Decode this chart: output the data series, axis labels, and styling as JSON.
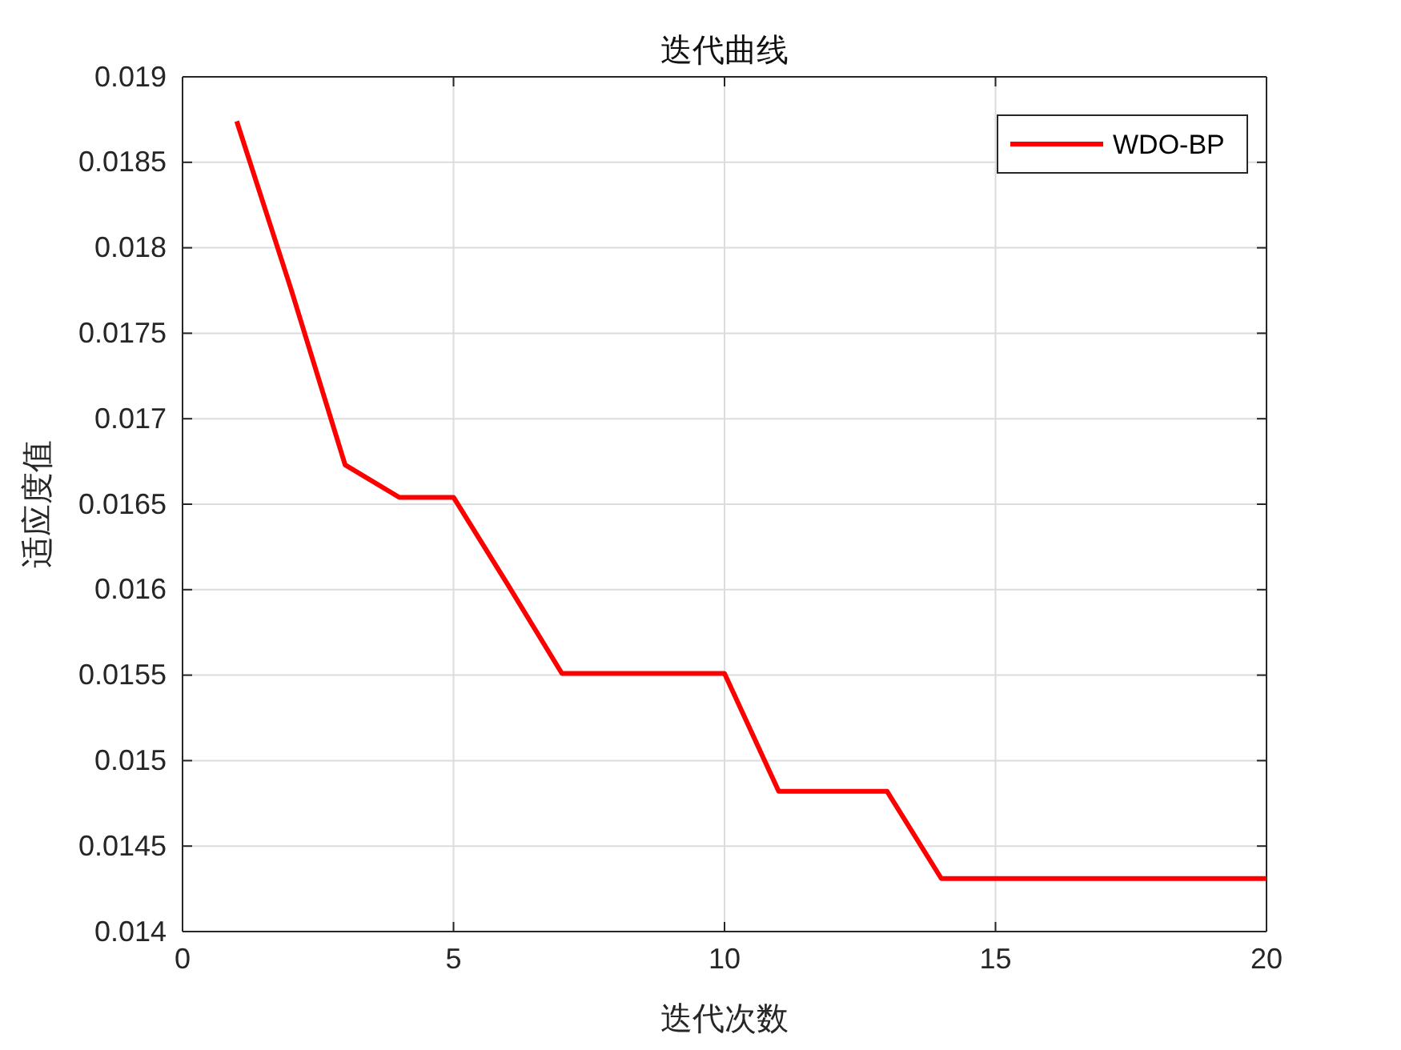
{
  "chart_data": {
    "type": "line",
    "title": "迭代曲线",
    "xlabel": "迭代次数",
    "ylabel": "适应度值",
    "x": [
      1,
      2,
      3,
      4,
      5,
      6,
      7,
      8,
      9,
      10,
      11,
      12,
      13,
      14,
      15,
      16,
      17,
      18,
      19,
      20
    ],
    "series": [
      {
        "name": "WDO-BP",
        "color": "#ff0000",
        "values": [
          0.01874,
          0.01776,
          0.01673,
          0.01654,
          0.01654,
          0.01603,
          0.01551,
          0.01551,
          0.01551,
          0.01551,
          0.01482,
          0.01482,
          0.01482,
          0.01431,
          0.01431,
          0.01431,
          0.01431,
          0.01431,
          0.01431,
          0.01431
        ]
      }
    ],
    "xlim": [
      0,
      20
    ],
    "xticks": [
      0,
      5,
      10,
      15,
      20
    ],
    "ylim": [
      0.014,
      0.019
    ],
    "yticks": [
      0.014,
      0.0145,
      0.015,
      0.0155,
      0.016,
      0.0165,
      0.017,
      0.0175,
      0.018,
      0.0185,
      0.019
    ],
    "grid": true,
    "legend": "top right",
    "marker": "none",
    "line_style": "solid"
  }
}
